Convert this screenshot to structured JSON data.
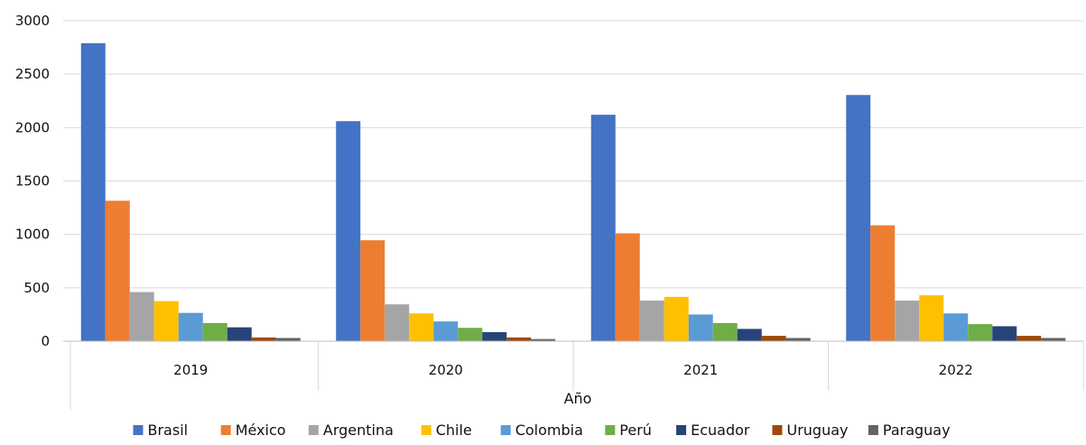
{
  "chart_data": {
    "type": "bar",
    "xlabel": "Año",
    "ylabel": "",
    "ylim": [
      0,
      3000
    ],
    "yticks": [
      0,
      500,
      1000,
      1500,
      2000,
      2500,
      3000
    ],
    "grid": true,
    "legend_position": "bottom",
    "categories": [
      "2019",
      "2020",
      "2021",
      "2022"
    ],
    "series": [
      {
        "name": "Brasil",
        "color": "#4472C4",
        "values": [
          2790,
          2060,
          2120,
          2305
        ]
      },
      {
        "name": "México",
        "color": "#ED7D31",
        "values": [
          1315,
          945,
          1010,
          1085
        ]
      },
      {
        "name": "Argentina",
        "color": "#A5A5A5",
        "values": [
          460,
          345,
          380,
          380
        ]
      },
      {
        "name": "Chile",
        "color": "#FFC000",
        "values": [
          375,
          260,
          415,
          430
        ]
      },
      {
        "name": "Colombia",
        "color": "#5B9BD5",
        "values": [
          265,
          185,
          250,
          260
        ]
      },
      {
        "name": "Perú",
        "color": "#70AD47",
        "values": [
          170,
          125,
          170,
          160
        ]
      },
      {
        "name": "Ecuador",
        "color": "#264478",
        "values": [
          130,
          85,
          115,
          140
        ]
      },
      {
        "name": "Uruguay",
        "color": "#9E480E",
        "values": [
          35,
          35,
          50,
          50
        ]
      },
      {
        "name": "Paraguay",
        "color": "#636363",
        "values": [
          30,
          20,
          30,
          30
        ]
      }
    ]
  }
}
